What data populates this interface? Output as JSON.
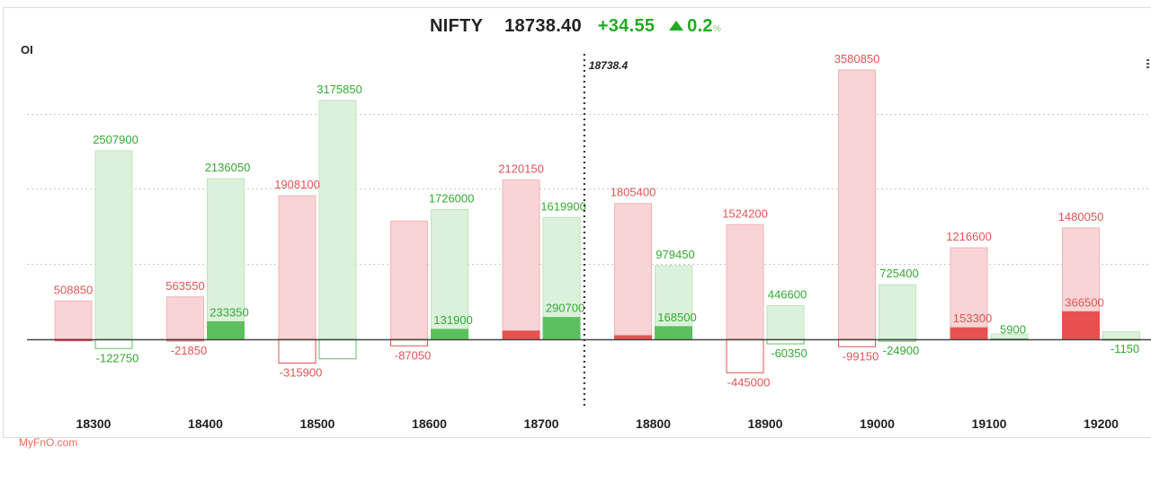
{
  "header": {
    "symbol": "NIFTY",
    "price": "18738.40",
    "change": "+34.55",
    "change_pct": "0.2",
    "pct_sign": "%"
  },
  "y_axis_label": "OI",
  "watermark": "MyFnO.com",
  "colors": {
    "call_fill": "#f9d4d6",
    "call_stroke": "#f2b3b6",
    "call_change": "#e85050",
    "call_label": "#e05555",
    "put_fill": "#dcf1dc",
    "put_stroke": "#bfe3bf",
    "put_change": "#5cc15c",
    "put_label": "#33aa33",
    "spot_line": "#222222"
  },
  "chart_data": {
    "type": "bar",
    "categories": [
      "18300",
      "18400",
      "18500",
      "18600",
      "18700",
      "18800",
      "18900",
      "19000",
      "19100",
      "19200"
    ],
    "spot": 18738.4,
    "spot_label": "18738.4",
    "ylim": [
      -1200000,
      3600000
    ],
    "grid": "horizontal-dotted",
    "series": [
      {
        "values": [
          508850,
          563550,
          1908100,
          1572000,
          2120150,
          1805400,
          1524200,
          3580850,
          1216600,
          1480050
        ]
      },
      {
        "values": [
          -20000,
          -21850,
          -315900,
          -87050,
          110000,
          48000,
          -445000,
          -99150,
          153300,
          366500
        ]
      },
      {
        "values": [
          2507900,
          2136050,
          3175850,
          1726000,
          1619900,
          979450,
          446600,
          725400,
          70000,
          100000
        ]
      },
      {
        "values": [
          -122750,
          233350,
          -260000,
          131900,
          290700,
          168500,
          -60350,
          -24900,
          5900,
          -1150
        ]
      }
    ],
    "data_labels": {
      "call_oi": [
        "508850",
        "563550",
        "1908100",
        "",
        "2120150",
        "1805400",
        "1524200",
        "3580850",
        "1216600",
        "1480050"
      ],
      "call_chg": [
        "",
        "-21850",
        "-315900",
        "-87050",
        "",
        "",
        "-445000",
        "-99150",
        "153300",
        "366500"
      ],
      "put_oi": [
        "2507900",
        "2136050",
        "3175850",
        "1726000",
        "1619900",
        "979450",
        "446600",
        "725400",
        "",
        ""
      ],
      "put_chg": [
        "-122750",
        "233350",
        "",
        "131900",
        "290700",
        "168500",
        "-60350",
        "-24900",
        "5900",
        "-1150"
      ]
    }
  }
}
